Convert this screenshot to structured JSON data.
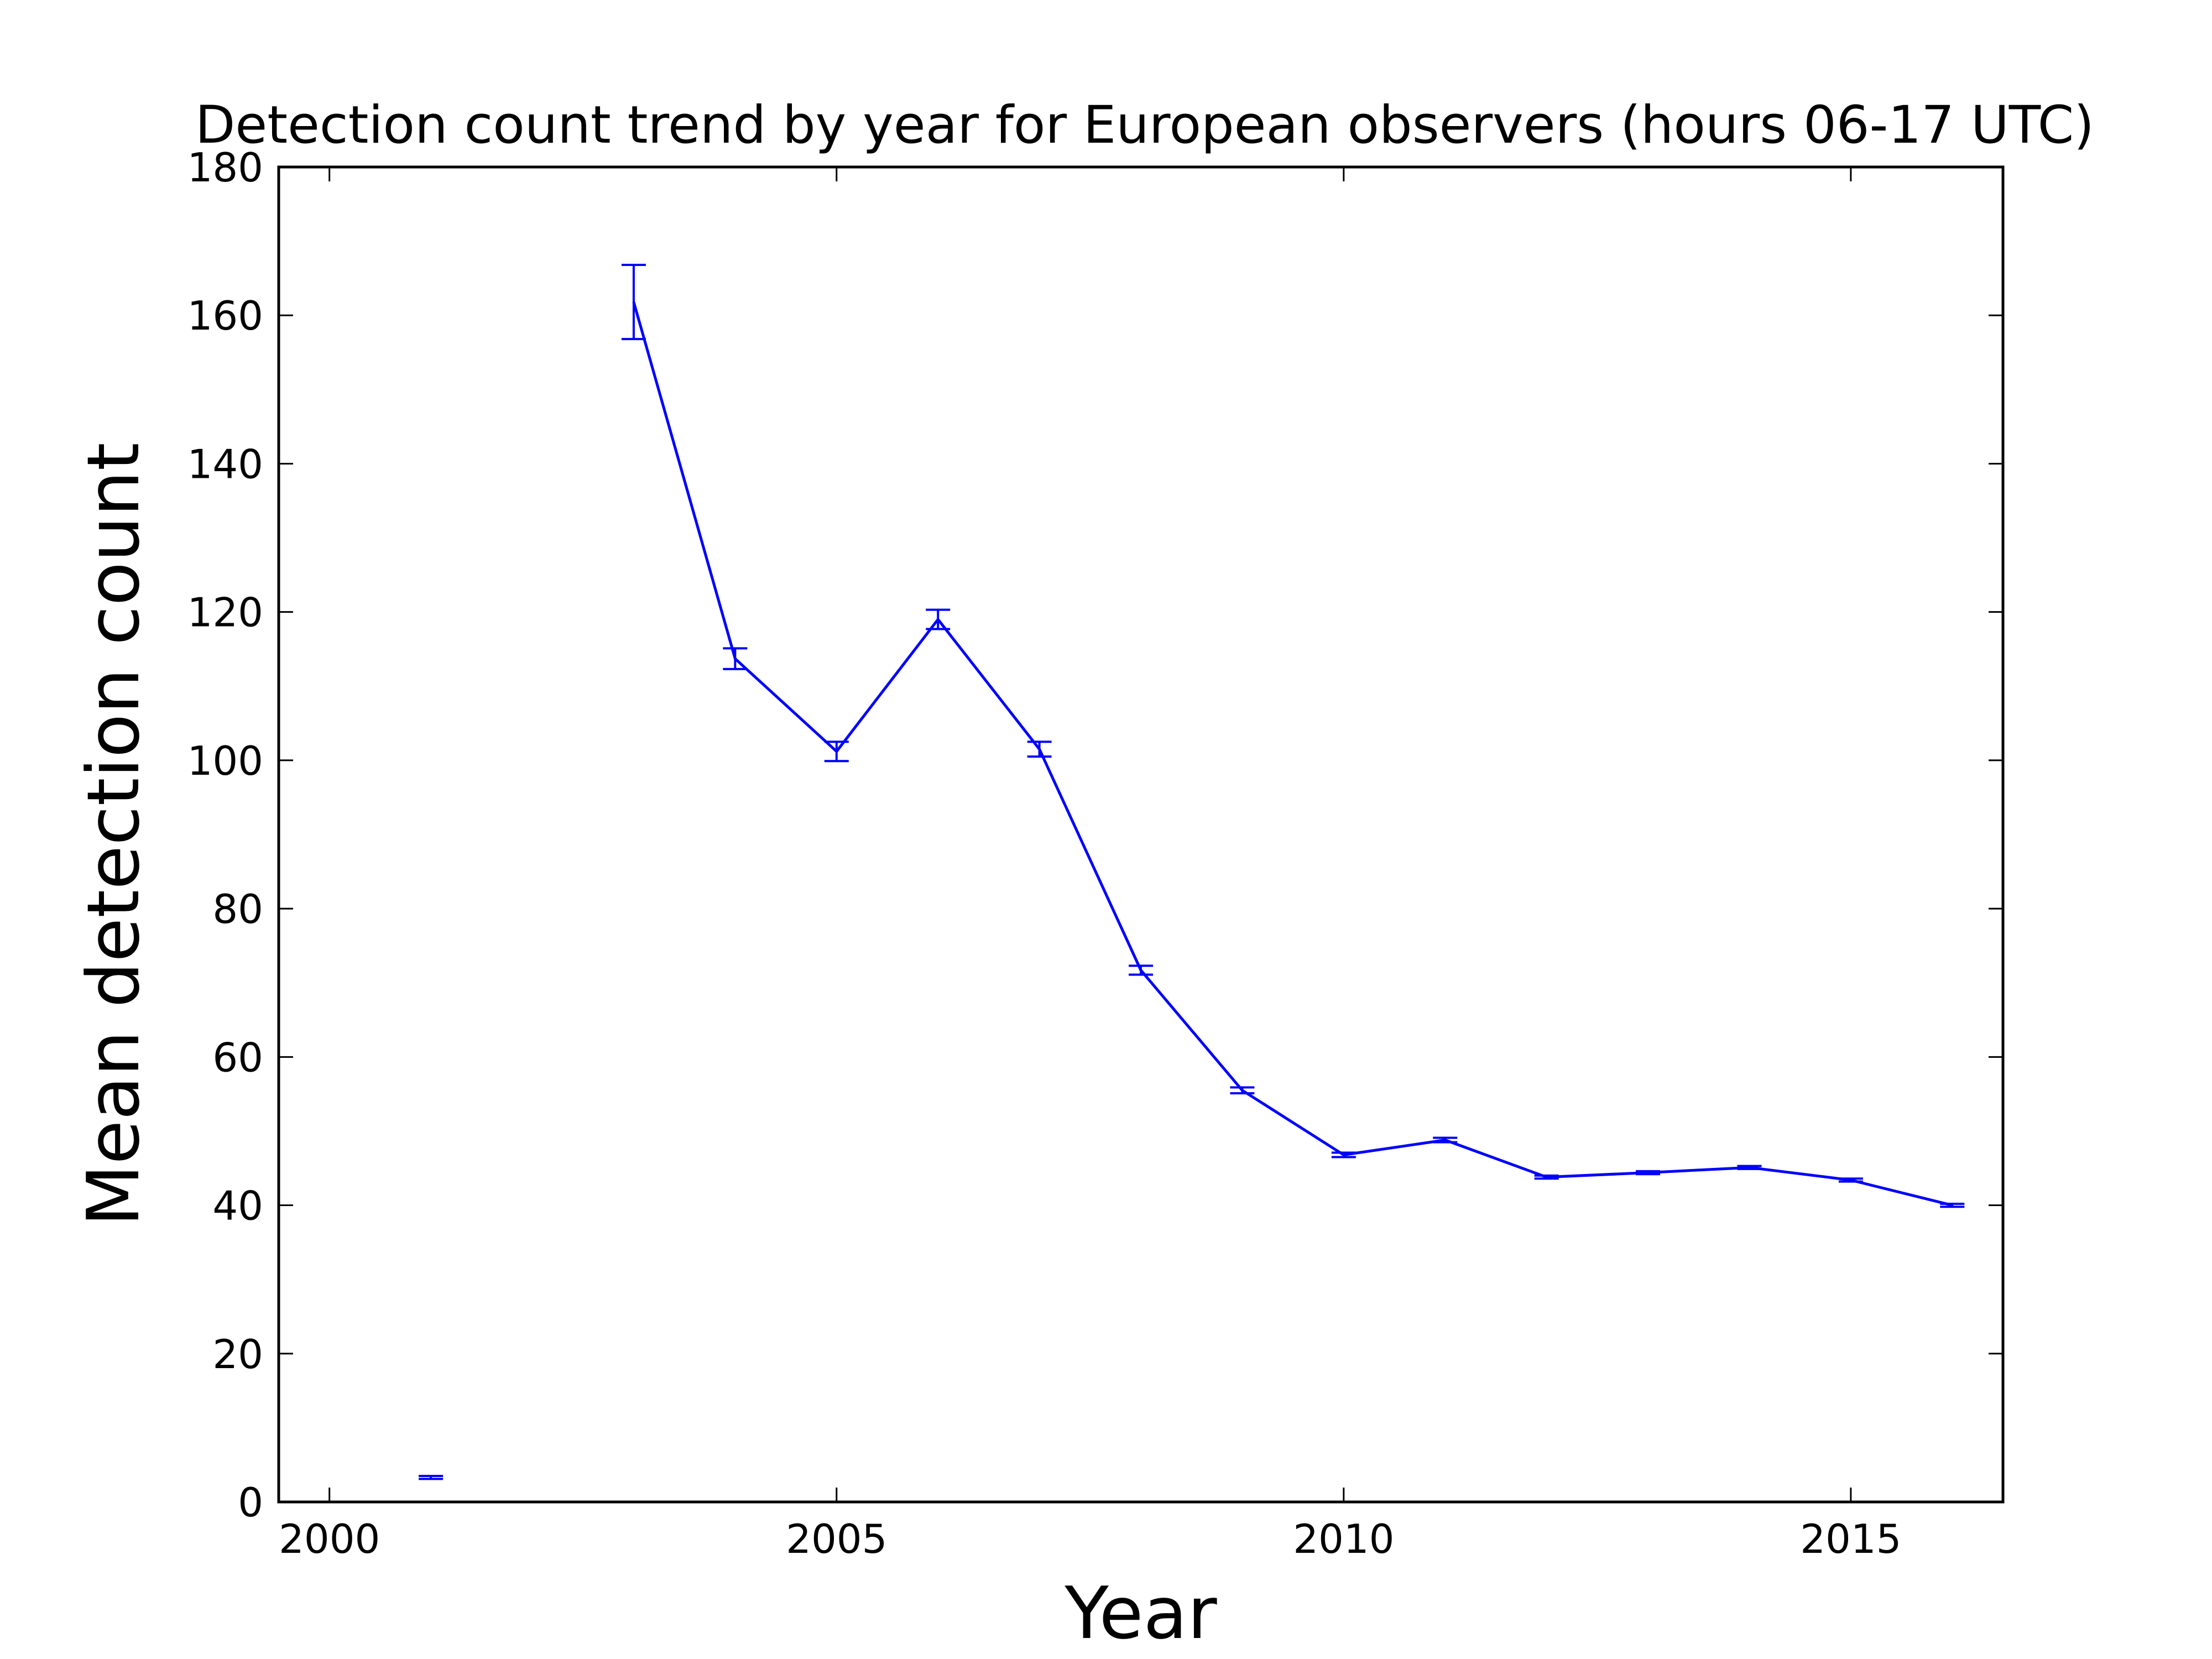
{
  "chart_data": {
    "type": "line",
    "title": "Detection count trend by year for European observers (hours 06-17 UTC)",
    "xlabel": "Year",
    "ylabel": "Mean detection count",
    "xlim": [
      1999.5,
      2016.5
    ],
    "ylim": [
      0,
      180
    ],
    "x_ticks": [
      "2000",
      "2005",
      "2010",
      "2015"
    ],
    "y_ticks": [
      "0",
      "20",
      "40",
      "60",
      "80",
      "100",
      "120",
      "140",
      "160",
      "180"
    ],
    "grid": false,
    "line_color": "#0000ff",
    "series": [
      {
        "x": [
          2001,
          2003,
          2004,
          2005,
          2006,
          2007,
          2008,
          2009,
          2010,
          2011,
          2012,
          2013,
          2014,
          2015,
          2016
        ],
        "y": [
          3.3,
          161.8,
          113.7,
          101.2,
          119.0,
          101.5,
          71.7,
          55.5,
          46.8,
          48.8,
          43.8,
          44.4,
          45.1,
          43.4,
          40.0
        ],
        "err": [
          0.2,
          5.0,
          1.4,
          1.3,
          1.3,
          1.0,
          0.6,
          0.4,
          0.3,
          0.3,
          0.2,
          0.2,
          0.2,
          0.2,
          0.2
        ],
        "connected_from_index": 1
      }
    ]
  }
}
